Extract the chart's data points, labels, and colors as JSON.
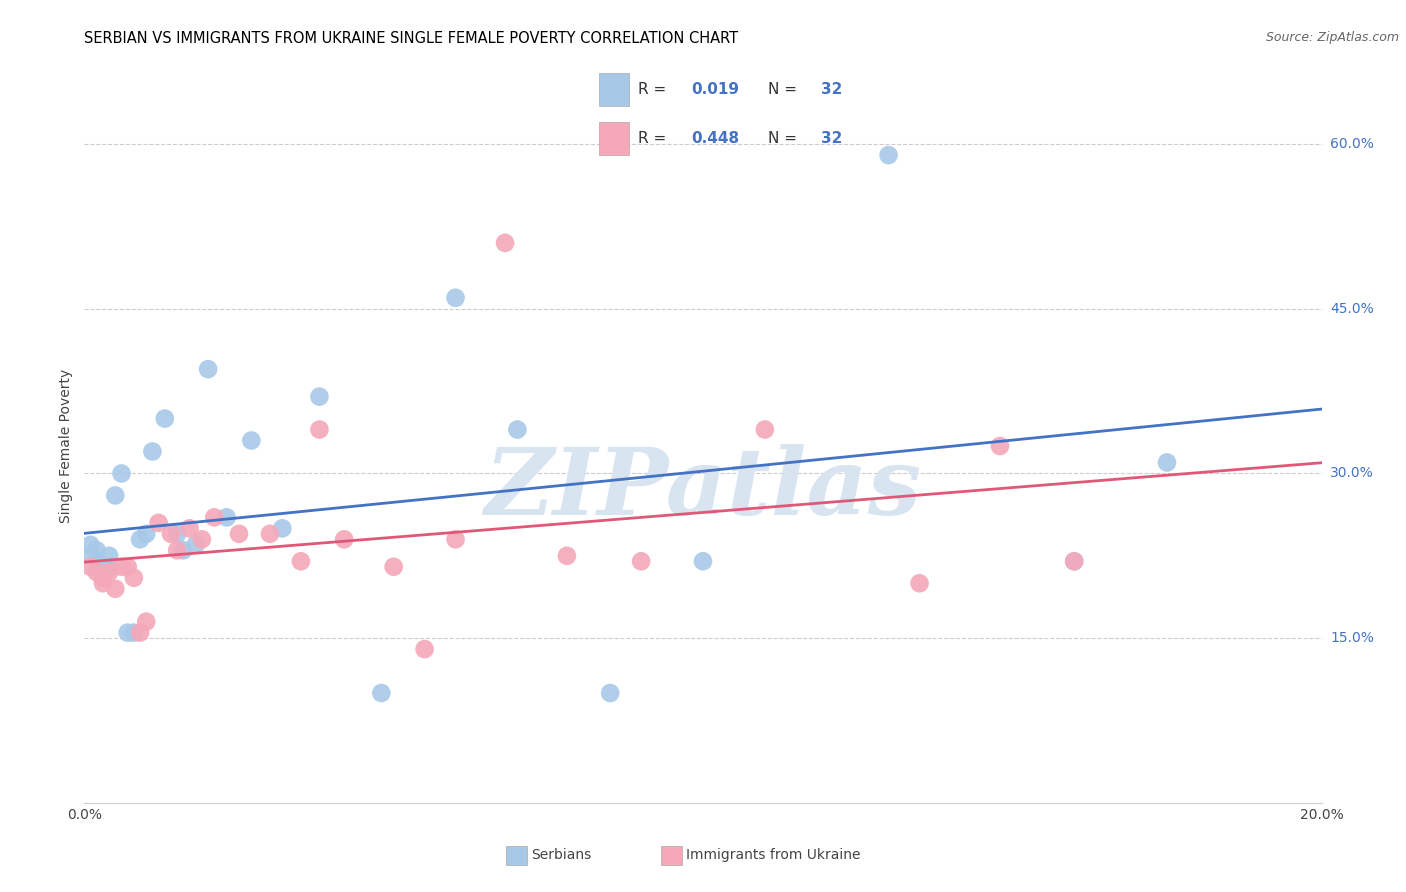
{
  "title": "SERBIAN VS IMMIGRANTS FROM UKRAINE SINGLE FEMALE POVERTY CORRELATION CHART",
  "source": "Source: ZipAtlas.com",
  "ylabel": "Single Female Poverty",
  "xlim": [
    0.0,
    0.2
  ],
  "ylim": [
    0.0,
    0.65
  ],
  "xtick_vals": [
    0.0,
    0.04,
    0.08,
    0.12,
    0.16,
    0.2
  ],
  "xticklabels": [
    "0.0%",
    "",
    "",
    "",
    "",
    "20.0%"
  ],
  "yticks_right": [
    0.15,
    0.3,
    0.45,
    0.6
  ],
  "ytick_right_labels": [
    "15.0%",
    "30.0%",
    "45.0%",
    "60.0%"
  ],
  "r_serbian": "0.019",
  "n_serbian": "32",
  "r_ukraine": "0.448",
  "n_ukraine": "32",
  "color_serbian": "#a8c8e8",
  "color_ukraine": "#f4a8b8",
  "line_color_serbian": "#4472c4",
  "line_color_ukraine": "#e05878",
  "watermark": "ZIPatlas",
  "watermark_color": "#d8e4f0",
  "serbian_x": [
    0.001,
    0.001,
    0.002,
    0.002,
    0.003,
    0.003,
    0.004,
    0.004,
    0.005,
    0.006,
    0.007,
    0.008,
    0.009,
    0.01,
    0.011,
    0.013,
    0.015,
    0.016,
    0.018,
    0.02,
    0.023,
    0.027,
    0.032,
    0.038,
    0.048,
    0.06,
    0.07,
    0.085,
    0.1,
    0.13,
    0.16,
    0.175
  ],
  "serbian_y": [
    0.235,
    0.225,
    0.23,
    0.22,
    0.215,
    0.215,
    0.225,
    0.215,
    0.28,
    0.3,
    0.155,
    0.155,
    0.24,
    0.245,
    0.32,
    0.35,
    0.245,
    0.23,
    0.235,
    0.395,
    0.26,
    0.33,
    0.25,
    0.37,
    0.1,
    0.46,
    0.34,
    0.1,
    0.22,
    0.59,
    0.22,
    0.31
  ],
  "ukraine_x": [
    0.001,
    0.002,
    0.003,
    0.003,
    0.004,
    0.005,
    0.006,
    0.007,
    0.008,
    0.009,
    0.01,
    0.012,
    0.014,
    0.015,
    0.017,
    0.019,
    0.021,
    0.025,
    0.03,
    0.035,
    0.038,
    0.042,
    0.05,
    0.055,
    0.06,
    0.068,
    0.078,
    0.09,
    0.11,
    0.135,
    0.148,
    0.16
  ],
  "ukraine_y": [
    0.215,
    0.21,
    0.205,
    0.2,
    0.21,
    0.195,
    0.215,
    0.215,
    0.205,
    0.155,
    0.165,
    0.255,
    0.245,
    0.23,
    0.25,
    0.24,
    0.26,
    0.245,
    0.245,
    0.22,
    0.34,
    0.24,
    0.215,
    0.14,
    0.24,
    0.51,
    0.225,
    0.22,
    0.34,
    0.2,
    0.325,
    0.22
  ]
}
